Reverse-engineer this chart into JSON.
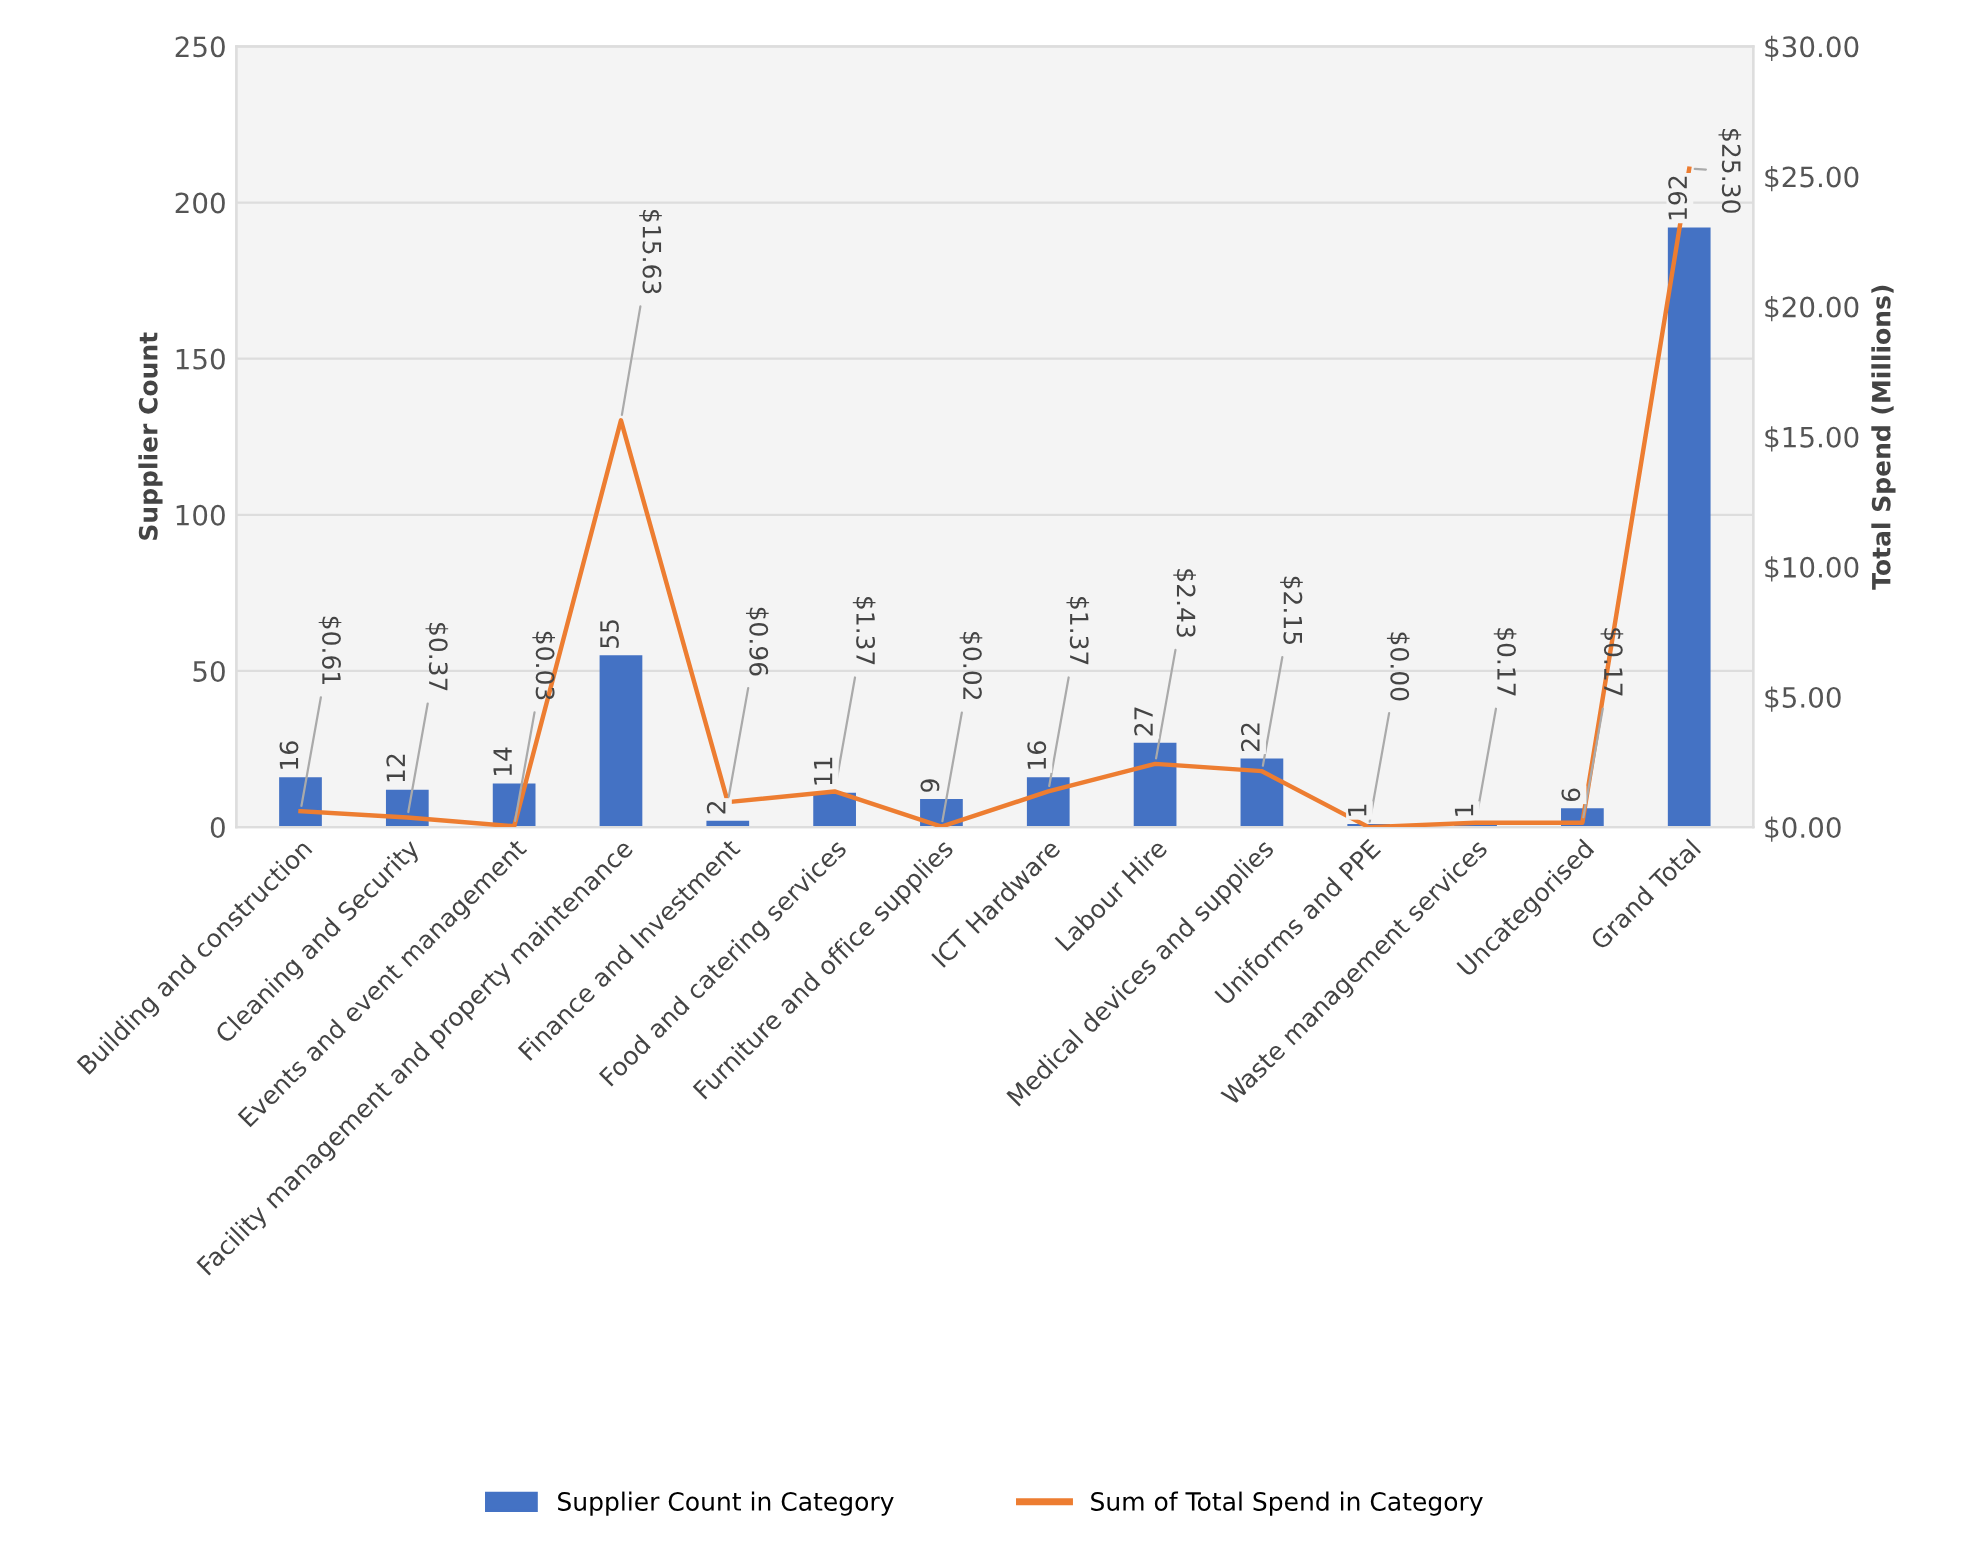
{
  "chart_data": {
    "type": "bar",
    "ylabel": "Supplier Count",
    "y2label": "Total Spend (Millions)",
    "categories": [
      "Building and construction",
      "Cleaning and Security",
      "Events and event management",
      "Facility management and property maintenance",
      "Finance and Investment",
      "Food and catering services",
      "Furniture and office supplies",
      "ICT Hardware",
      "Labour Hire",
      "Medical devices and supplies",
      "Uniforms and PPE",
      "Waste management services",
      "Uncategorised",
      "Grand Total"
    ],
    "series": [
      {
        "name": "Supplier Count in Category",
        "color": "#4472c4",
        "values": [
          16,
          12,
          14,
          55,
          2,
          11,
          9,
          16,
          27,
          22,
          1,
          1,
          6,
          192
        ],
        "data_labels": true
      },
      {
        "name": "Sum of Total Spend in Category",
        "type": "line",
        "axis": "y2",
        "color": "#ed7d31",
        "marker": "none",
        "values": [
          0.61,
          0.37,
          0.03,
          15.63,
          0.96,
          1.37,
          0.02,
          1.37,
          2.43,
          2.15,
          0.0,
          0.17,
          0.17,
          25.3
        ],
        "value_labels": [
          "$0.61",
          "$0.37",
          "$0.03",
          "$15.63",
          "$0.96",
          "$1.37",
          "$0.02",
          "$1.37",
          "$2.43",
          "$2.15",
          "$0.00",
          "$0.17",
          "$0.17",
          "$25.30"
        ]
      }
    ],
    "ylim": [
      0,
      250
    ],
    "yticks": [
      0,
      50,
      100,
      150,
      200,
      250
    ],
    "y2lim": [
      0,
      30
    ],
    "y2ticks": [
      {
        "value": 0,
        "label": "$0.00"
      },
      {
        "value": 5,
        "label": "$5.00"
      },
      {
        "value": 10,
        "label": "$10.00"
      },
      {
        "value": 15,
        "label": "$15.00"
      },
      {
        "value": 20,
        "label": "$20.00"
      },
      {
        "value": 25,
        "label": "$25.00"
      },
      {
        "value": 30,
        "label": "$30.00"
      }
    ],
    "grid": "y",
    "legend": "bottom"
  }
}
